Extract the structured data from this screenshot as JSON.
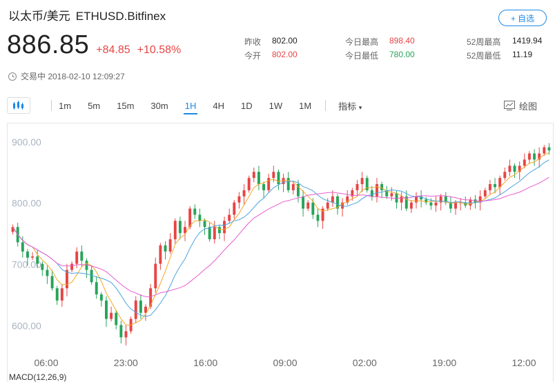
{
  "header": {
    "name": "以太币/美元",
    "symbol": "ETHUSD.Bitfinex",
    "fav_label": "+ 自选"
  },
  "quote": {
    "price": "886.85",
    "change": "+84.85",
    "change_pct": "+10.58%"
  },
  "status": {
    "text": "交易中 2018-02-10 12:09:27"
  },
  "stats": {
    "prev_close_label": "昨收",
    "prev_close": "802.00",
    "open_label": "今开",
    "open": "802.00",
    "high_label": "今日最高",
    "high": "898.40",
    "low_label": "今日最低",
    "low": "780.00",
    "w52_high_label": "52周最高",
    "w52_high": "1419.94",
    "w52_low_label": "52周最低",
    "w52_low": "11.19"
  },
  "toolbar": {
    "intervals": [
      "1m",
      "5m",
      "15m",
      "30m",
      "1H",
      "4H",
      "1D",
      "1W",
      "1M"
    ],
    "active_interval": "1H",
    "indicator_label": "指标",
    "draw_label": "绘图"
  },
  "colors": {
    "up": "#e64545",
    "down": "#27a45a",
    "ma_fast": "#f5a623",
    "ma_mid": "#4aa3df",
    "ma_slow": "#e85ccf",
    "accent": "#1e88e5"
  },
  "chart_data": {
    "type": "candlestick",
    "y_ticks": [
      "900.00",
      "800.00",
      "700.00",
      "600.00"
    ],
    "x_ticks": [
      "06:00",
      "23:00",
      "16:00",
      "09:00",
      "02:00",
      "19:00",
      "12:00"
    ],
    "ylim": [
      560,
      920
    ],
    "indicator_label": "MACD(12,26,9)",
    "closes": [
      760,
      735,
      720,
      710,
      712,
      700,
      690,
      680,
      660,
      640,
      660,
      690,
      700,
      720,
      705,
      690,
      670,
      650,
      640,
      610,
      620,
      600,
      580,
      590,
      610,
      640,
      620,
      630,
      660,
      700,
      730,
      720,
      740,
      770,
      750,
      760,
      790,
      780,
      770,
      760,
      740,
      760,
      750,
      770,
      780,
      800,
      810,
      820,
      840,
      850,
      830,
      820,
      840,
      850,
      830,
      840,
      820,
      830,
      810,
      790,
      800,
      780,
      770,
      790,
      800,
      810,
      790,
      800,
      810,
      820,
      830,
      840,
      820,
      810,
      830,
      820,
      810,
      815,
      800,
      810,
      790,
      800,
      810,
      805,
      800,
      795,
      800,
      810,
      800,
      790,
      800,
      800,
      795,
      805,
      800,
      810,
      820,
      830,
      825,
      840,
      850,
      860,
      850,
      860,
      870,
      880,
      870,
      880,
      890,
      885
    ]
  }
}
